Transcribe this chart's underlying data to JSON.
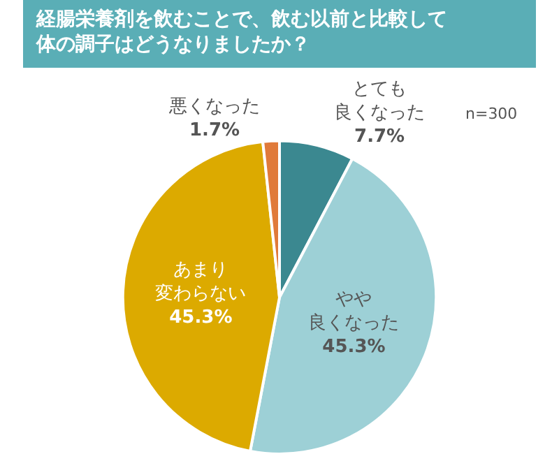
{
  "chart_data": {
    "type": "pie",
    "title": "経腸栄養剤を飲むことで、飲む以前と比較して体の調子はどうなりましたか？",
    "annotations": [
      "n=300"
    ],
    "categories": [
      "とても良くなった",
      "やや良くなった",
      "あまり変わらない",
      "悪くなった"
    ],
    "values": [
      7.7,
      45.3,
      45.3,
      1.7
    ],
    "value_labels": [
      "7.7%",
      "45.3%",
      "45.3%",
      "1.7%"
    ],
    "colors": [
      "#3b8890",
      "#9dd0d6",
      "#dcaa00",
      "#e07a3a"
    ],
    "legend": false
  }
}
